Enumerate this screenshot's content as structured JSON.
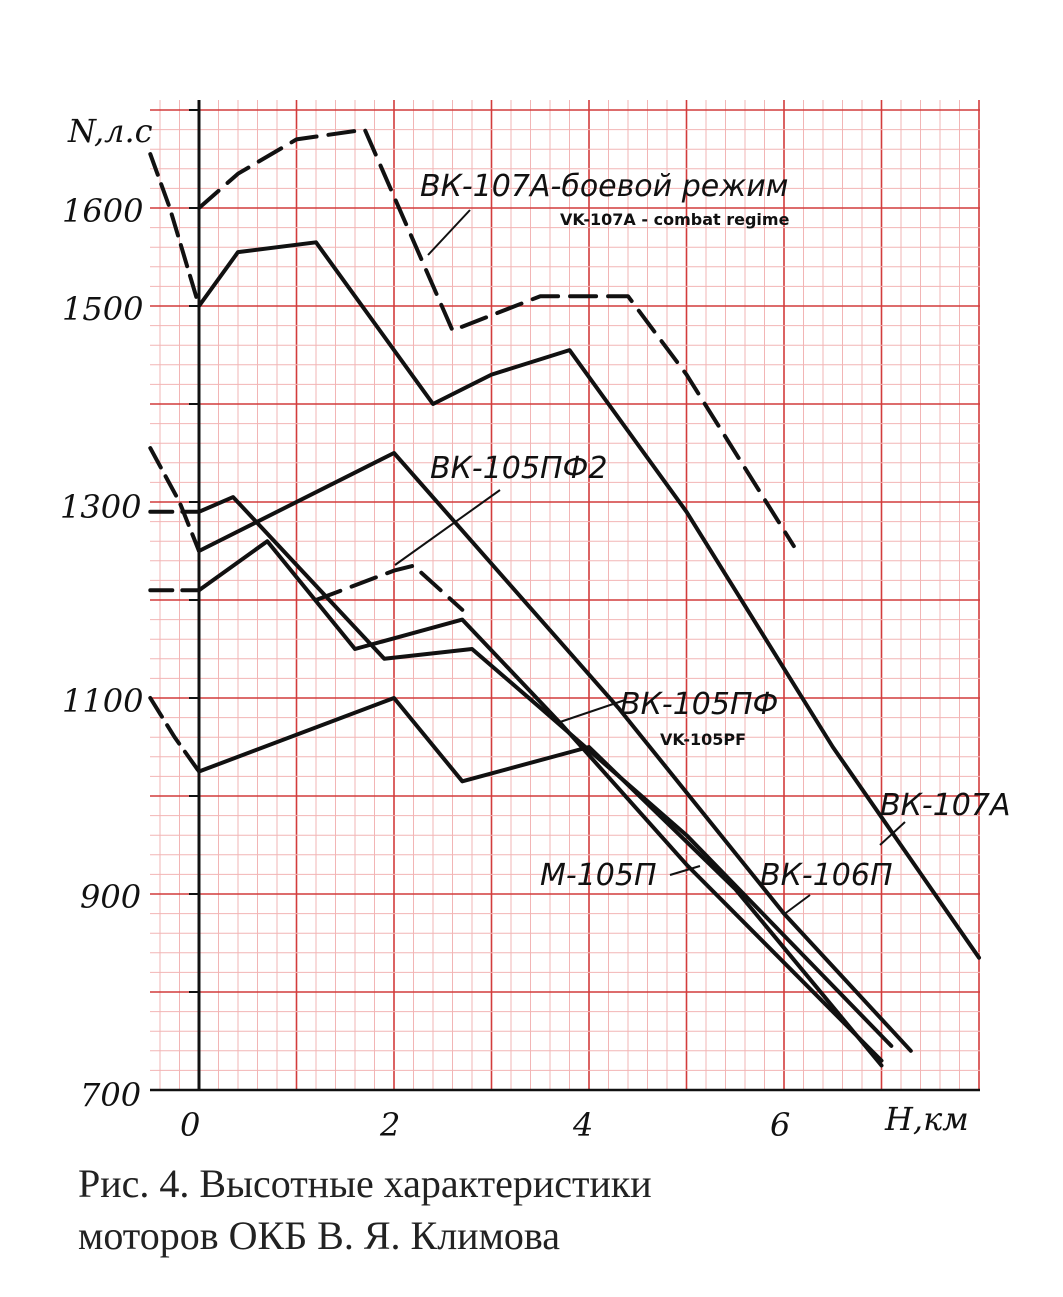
{
  "chart_data": {
    "type": "line",
    "ylabel": "N,л.с",
    "xlabel": "H,км",
    "xlim": [
      -0.5,
      8.0
    ],
    "ylim": [
      700,
      1700
    ],
    "xticks": [
      "0",
      "2",
      "4",
      "6"
    ],
    "yticks": [
      "700",
      "900",
      "1100",
      "1300",
      "1500",
      "1600"
    ],
    "grid": true,
    "series": [
      {
        "name": "ВК-107А-боевой режим",
        "dash": "dashed",
        "x": [
          0.0,
          0.4,
          1.0,
          1.7,
          2.6,
          3.5,
          4.4,
          5.0,
          6.1
        ],
        "y": [
          1600,
          1635,
          1670,
          1680,
          1475,
          1510,
          1510,
          1430,
          1255
        ]
      },
      {
        "name": "ВК-107А",
        "dash": "solid",
        "x": [
          0.0,
          0.4,
          1.2,
          2.4,
          3.0,
          3.8,
          5.0,
          6.5,
          8.0
        ],
        "y": [
          1500,
          1555,
          1565,
          1400,
          1430,
          1455,
          1290,
          1050,
          835
        ]
      },
      {
        "name": "ВК-105ПФ2",
        "dash": "solid",
        "x": [
          0.0,
          2.0,
          4.3,
          6.0,
          7.3
        ],
        "y": [
          1250,
          1350,
          1090,
          880,
          740
        ]
      },
      {
        "name": "ВК-105ПФ2 (dashed)",
        "dash": "dashed",
        "x": [
          1.2,
          2.0,
          2.2,
          2.7
        ],
        "y": [
          1200,
          1230,
          1235,
          1190
        ]
      },
      {
        "name": "ВК-105ПФ",
        "dash": "solid",
        "x": [
          0.0,
          0.7,
          1.6,
          2.7,
          3.7,
          5.0,
          7.0
        ],
        "y": [
          1210,
          1260,
          1150,
          1180,
          1075,
          930,
          730
        ]
      },
      {
        "name": "ВК-106П",
        "dash": "solid",
        "x": [
          0.0,
          0.35,
          1.9,
          2.8,
          3.5,
          5.0,
          7.1
        ],
        "y": [
          1290,
          1305,
          1140,
          1150,
          1090,
          960,
          745
        ]
      },
      {
        "name": "М-105П",
        "dash": "solid",
        "x": [
          0.0,
          2.0,
          2.7,
          4.0,
          5.5,
          7.0
        ],
        "y": [
          1025,
          1100,
          1015,
          1050,
          905,
          725
        ]
      }
    ],
    "left_dashed_prefix": [
      {
        "x": [
          -0.5,
          -0.3,
          0.0
        ],
        "y": [
          1655,
          1600,
          1500
        ]
      },
      {
        "x": [
          -0.5,
          -0.2,
          0.0
        ],
        "y": [
          1355,
          1300,
          1250
        ]
      },
      {
        "x": [
          -0.5,
          0.0
        ],
        "y": [
          1290,
          1290
        ]
      },
      {
        "x": [
          -0.5,
          0.0
        ],
        "y": [
          1210,
          1210
        ]
      },
      {
        "x": [
          -0.5,
          -0.25,
          0.0
        ],
        "y": [
          1100,
          1060,
          1025
        ]
      }
    ]
  },
  "labels": {
    "vk107a_combat": "ВК-107А-боевой режим",
    "vk107a_combat_en": "VK-107A - combat regime",
    "vk105pf2": "ВК-105ПФ2",
    "vk105pf": "ВК-105ПФ",
    "vk105pf_en": "VK-105PF",
    "vk107a": "ВК-107А",
    "m105p": "М-105П",
    "vk106p": "ВК-106П"
  },
  "caption": {
    "line1": "Рис. 4. Высотные  характеристики",
    "line2": "моторов  ОКБ  В. Я. Климова"
  },
  "colors": {
    "grid_minor": "#f2b5b5",
    "grid_major": "#d23c3c",
    "curves": "#111111"
  }
}
